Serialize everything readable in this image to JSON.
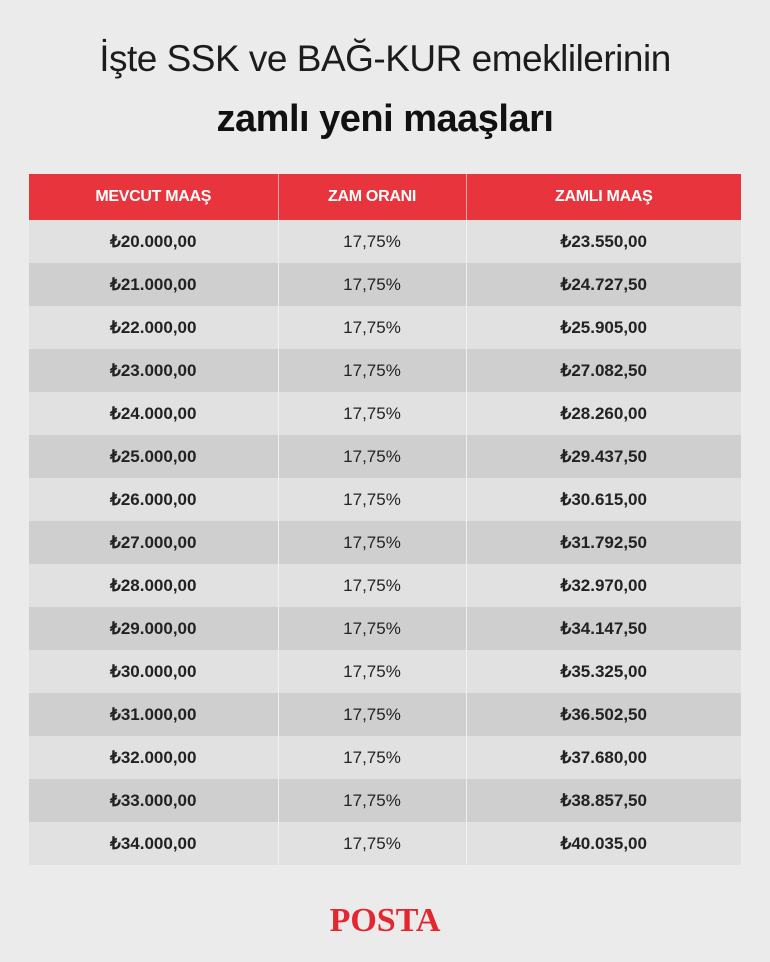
{
  "header": {
    "title_line1": "İşte SSK ve BAĞ-KUR emeklilerinin",
    "title_line2": "zamlı yeni maaşları"
  },
  "table": {
    "columns": [
      "MEVCUT MAAŞ",
      "ZAM ORANI",
      "ZAMLI MAAŞ"
    ],
    "rows": [
      [
        "₺20.000,00",
        "17,75%",
        "₺23.550,00"
      ],
      [
        "₺21.000,00",
        "17,75%",
        "₺24.727,50"
      ],
      [
        "₺22.000,00",
        "17,75%",
        "₺25.905,00"
      ],
      [
        "₺23.000,00",
        "17,75%",
        "₺27.082,50"
      ],
      [
        "₺24.000,00",
        "17,75%",
        "₺28.260,00"
      ],
      [
        "₺25.000,00",
        "17,75%",
        "₺29.437,50"
      ],
      [
        "₺26.000,00",
        "17,75%",
        "₺30.615,00"
      ],
      [
        "₺27.000,00",
        "17,75%",
        "₺31.792,50"
      ],
      [
        "₺28.000,00",
        "17,75%",
        "₺32.970,00"
      ],
      [
        "₺29.000,00",
        "17,75%",
        "₺34.147,50"
      ],
      [
        "₺30.000,00",
        "17,75%",
        "₺35.325,00"
      ],
      [
        "₺31.000,00",
        "17,75%",
        "₺36.502,50"
      ],
      [
        "₺32.000,00",
        "17,75%",
        "₺37.680,00"
      ],
      [
        "₺33.000,00",
        "17,75%",
        "₺38.857,50"
      ],
      [
        "₺34.000,00",
        "17,75%",
        "₺40.035,00"
      ]
    ]
  },
  "footer": {
    "logo": "POSTA"
  },
  "colors": {
    "header_red": "#e8353d",
    "logo_red": "#e3262f",
    "background": "#ebebeb"
  }
}
